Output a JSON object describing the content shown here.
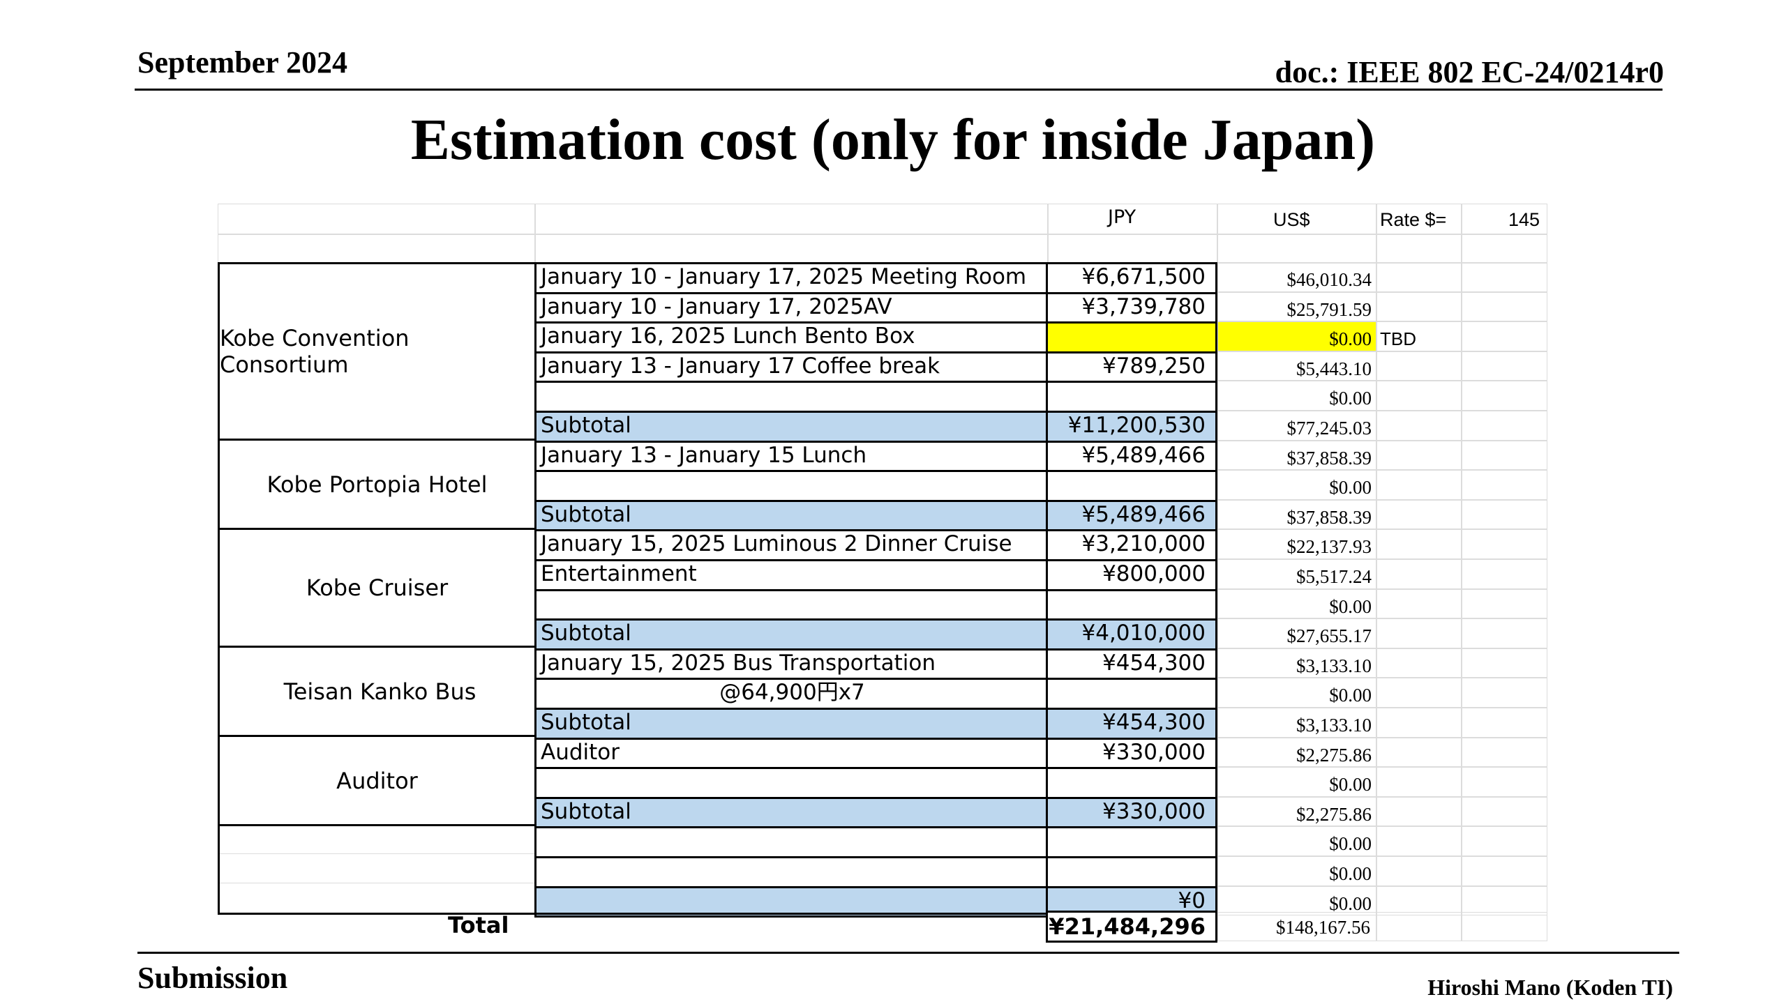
{
  "header": {
    "date": "September 2024",
    "doc": "doc.: IEEE 802 EC-24/0214r0"
  },
  "title": "Estimation cost (only for inside Japan)",
  "footer": {
    "left": "Submission",
    "right": "Hiroshi Mano (Koden TI)"
  },
  "table": {
    "col_jpy": "JPY",
    "col_usd": "US$",
    "rate_label": "Rate $=",
    "rate_value": "145",
    "groups": [
      {
        "name": "Kobe Convention Consortium"
      },
      {
        "name": "Kobe Portopia Hotel"
      },
      {
        "name": "Kobe Cruiser"
      },
      {
        "name": "Teisan Kanko Bus"
      },
      {
        "name": "Auditor"
      },
      {
        "name": ""
      }
    ],
    "rows": [
      {
        "item": "January 10 - January 17, 2025  Meeting Room",
        "jpy": "¥6,671,500",
        "usd": "$46,010.34"
      },
      {
        "item": "January 10 - January 17, 2025AV",
        "jpy": "¥3,739,780",
        "usd": "$25,791.59"
      },
      {
        "item": "January 16, 2025 Lunch Bento Box",
        "jpy": "",
        "usd": "$0.00",
        "note": "TBD"
      },
      {
        "item": "January 13 - January 17 Coffee break",
        "jpy": "¥789,250",
        "usd": "$5,443.10"
      },
      {
        "item": "",
        "jpy": "",
        "usd": "$0.00"
      },
      {
        "item": "Subtotal",
        "jpy": "¥11,200,530",
        "usd": "$77,245.03"
      },
      {
        "item": "January 13 - January 15 Lunch",
        "jpy": "¥5,489,466",
        "usd": "$37,858.39"
      },
      {
        "item": "",
        "jpy": "",
        "usd": "$0.00"
      },
      {
        "item": "Subtotal",
        "jpy": "¥5,489,466",
        "usd": "$37,858.39"
      },
      {
        "item": "January 15, 2025 Luminous 2 Dinner Cruise",
        "jpy": "¥3,210,000",
        "usd": "$22,137.93"
      },
      {
        "item": "Entertainment",
        "jpy": "¥800,000",
        "usd": "$5,517.24"
      },
      {
        "item": "",
        "jpy": "",
        "usd": "$0.00"
      },
      {
        "item": "Subtotal",
        "jpy": "¥4,010,000",
        "usd": "$27,655.17"
      },
      {
        "item": "January 15, 2025 Bus Transportation",
        "jpy": "¥454,300",
        "usd": "$3,133.10"
      },
      {
        "item": "@64,900円x7",
        "jpy": "",
        "usd": "$0.00"
      },
      {
        "item": "Subtotal",
        "jpy": "¥454,300",
        "usd": "$3,133.10"
      },
      {
        "item": "Auditor",
        "jpy": "¥330,000",
        "usd": "$2,275.86"
      },
      {
        "item": "",
        "jpy": "",
        "usd": "$0.00"
      },
      {
        "item": "Subtotal",
        "jpy": "¥330,000",
        "usd": "$2,275.86"
      },
      {
        "item": "",
        "jpy": "",
        "usd": "$0.00"
      },
      {
        "item": "",
        "jpy": "",
        "usd": "$0.00"
      },
      {
        "item": "",
        "jpy": "¥0",
        "usd": "$0.00"
      }
    ],
    "total": {
      "label": "Total",
      "jpy": "¥21,484,296",
      "usd": "$148,167.56"
    }
  }
}
